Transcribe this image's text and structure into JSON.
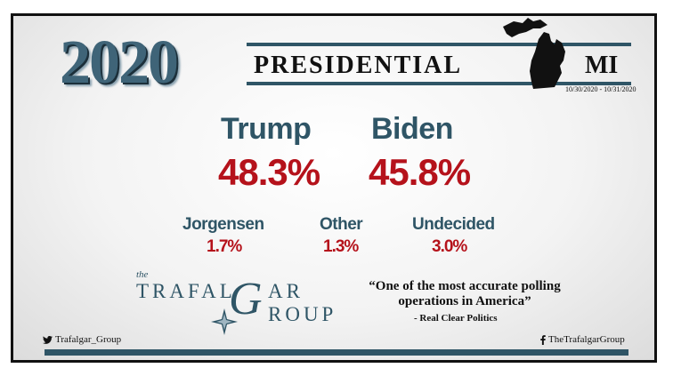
{
  "header": {
    "year": "2020",
    "title": "PRESIDENTIAL",
    "state": "MI",
    "dates": "10/30/2020 - 10/31/2020"
  },
  "candidates": {
    "trump": {
      "name": "Trump",
      "pct": "48.3%"
    },
    "biden": {
      "name": "Biden",
      "pct": "45.8%"
    },
    "jorgensen": {
      "name": "Jorgensen",
      "pct": "1.7%"
    },
    "other": {
      "name": "Other",
      "pct": "1.3%"
    },
    "undecided": {
      "name": "Undecided",
      "pct": "3.0%"
    }
  },
  "logo": {
    "the": "the",
    "trafal": "TRAFAL",
    "g": "G",
    "ar": "AR",
    "group": "ROUP"
  },
  "quote": {
    "text": "“One of the most accurate polling operations in America”",
    "source": "- Real Clear Politics"
  },
  "footer": {
    "twitter": "Trafalgar_Group",
    "facebook": "TheTrafalgarGroup"
  },
  "colors": {
    "accent": "#2f5566",
    "red": "#b5121b"
  }
}
